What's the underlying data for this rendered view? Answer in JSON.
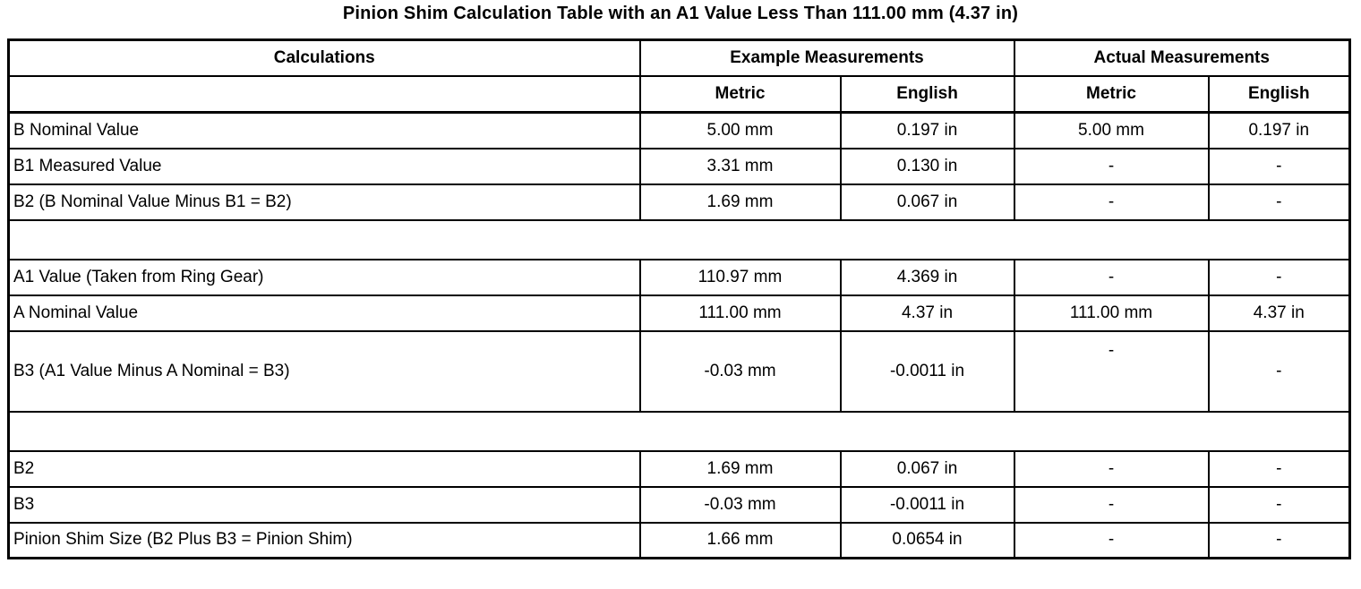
{
  "title": "Pinion Shim Calculation Table with an A1 Value Less Than 111.00 mm (4.37 in)",
  "colors": {
    "text": "#000000",
    "border": "#000000",
    "background": "#ffffff"
  },
  "table": {
    "header": {
      "calculations": "Calculations",
      "example_group": "Example Measurements",
      "actual_group": "Actual Measurements",
      "subheaders": [
        "Metric",
        "English",
        "Metric",
        "English"
      ]
    },
    "rows": [
      {
        "type": "data",
        "label": "B Nominal Value",
        "example_metric": "5.00 mm",
        "example_english": "0.197 in",
        "actual_metric": "5.00 mm",
        "actual_english": "0.197 in"
      },
      {
        "type": "data",
        "label": "B1 Measured Value",
        "example_metric": "3.31 mm",
        "example_english": "0.130 in",
        "actual_metric": "-",
        "actual_english": "-"
      },
      {
        "type": "data",
        "label": "B2 (B Nominal Value Minus B1 = B2)",
        "example_metric": "1.69 mm",
        "example_english": "0.067 in",
        "actual_metric": "-",
        "actual_english": "-"
      },
      {
        "type": "spacer"
      },
      {
        "type": "data",
        "label": "A1 Value (Taken from Ring Gear)",
        "example_metric": "110.97 mm",
        "example_english": "4.369 in",
        "actual_metric": "-",
        "actual_english": "-"
      },
      {
        "type": "data",
        "label": "A Nominal Value",
        "example_metric": "111.00 mm",
        "example_english": "4.37 in",
        "actual_metric": "111.00 mm",
        "actual_english": "4.37 in"
      },
      {
        "type": "data",
        "tall": true,
        "label": "B3 (A1 Value Minus A Nominal = B3)",
        "example_metric": "-0.03 mm",
        "example_english": "-0.0011 in",
        "actual_metric": "-",
        "actual_metric_align": "top",
        "actual_english": "-"
      },
      {
        "type": "spacer"
      },
      {
        "type": "data",
        "label": "B2",
        "example_metric": "1.69 mm",
        "example_english": "0.067 in",
        "actual_metric": "-",
        "actual_english": "-"
      },
      {
        "type": "data",
        "label": "B3",
        "example_metric": "-0.03 mm",
        "example_english": "-0.0011 in",
        "actual_metric": "-",
        "actual_english": "-"
      },
      {
        "type": "data",
        "label": "Pinion Shim Size (B2 Plus B3 = Pinion Shim)",
        "example_metric": "1.66 mm",
        "example_english": "0.0654 in",
        "actual_metric": "-",
        "actual_english": "-"
      }
    ]
  }
}
